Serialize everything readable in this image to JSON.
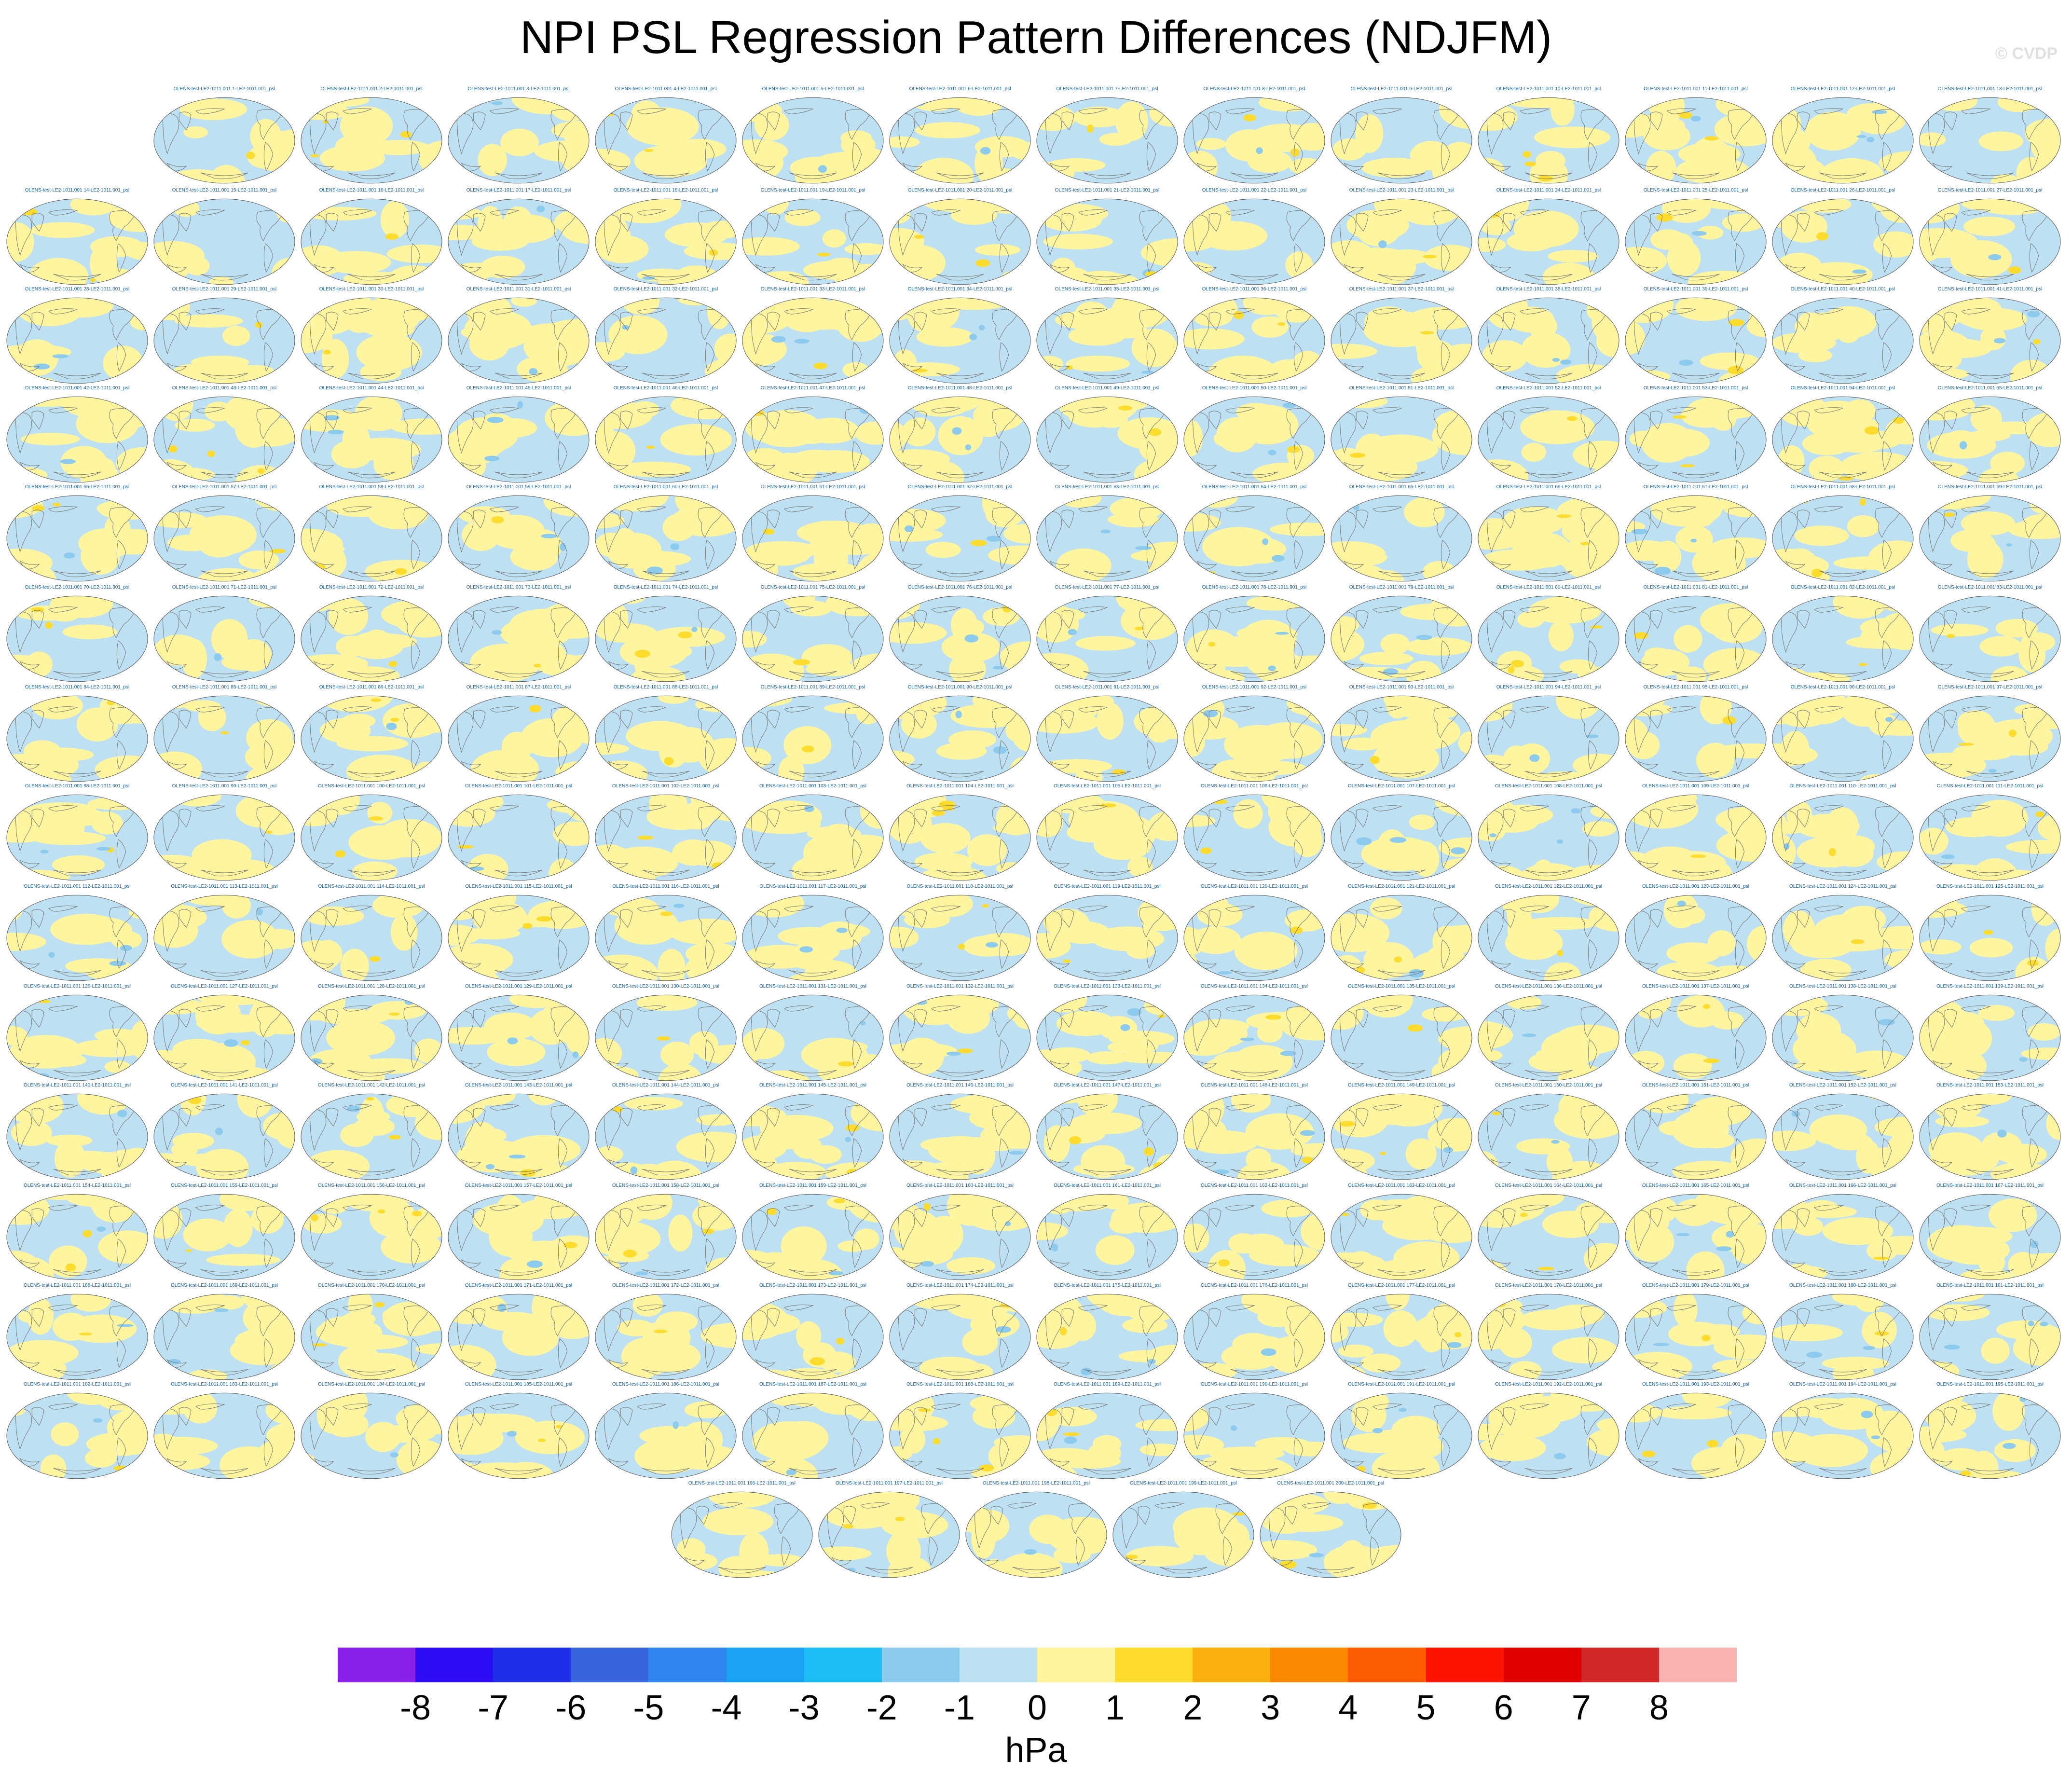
{
  "title": "NPI PSL Regression Pattern Differences (NDJFM)",
  "watermark": "© CVDP",
  "chart_data": {
    "type": "heatmap",
    "title": "NPI PSL Regression Pattern Differences (NDJFM)",
    "panel_count": 200,
    "panel_label_prefix": "OLENS-test-LE2-1011.001 ",
    "panel_label_middle": "-LE2-1011.001_psl",
    "panel_label_note": "Panel n label = prefix + n + middle",
    "colorbar": {
      "units": "hPa",
      "ticks": [
        "-8",
        "-7",
        "-6",
        "-5",
        "-4",
        "-3",
        "-2",
        "-1",
        "0",
        "1",
        "2",
        "3",
        "4",
        "5",
        "6",
        "7",
        "8"
      ],
      "colors": [
        "#8a1fe8",
        "#2b0cf5",
        "#1f2fe8",
        "#3a63e0",
        "#2f85f2",
        "#1aa3f5",
        "#1cbdf5",
        "#8ccbee",
        "#bde0f2",
        "#fff59e",
        "#fddc2e",
        "#fbb00e",
        "#fb8800",
        "#fc5c00",
        "#fc1400",
        "#e00000",
        "#d02828",
        "#fdb2b2"
      ]
    },
    "dominant_colors": {
      "ocean_negative": "#bde0f2",
      "positive": "#fff59e",
      "land_outline": "#777777"
    }
  }
}
